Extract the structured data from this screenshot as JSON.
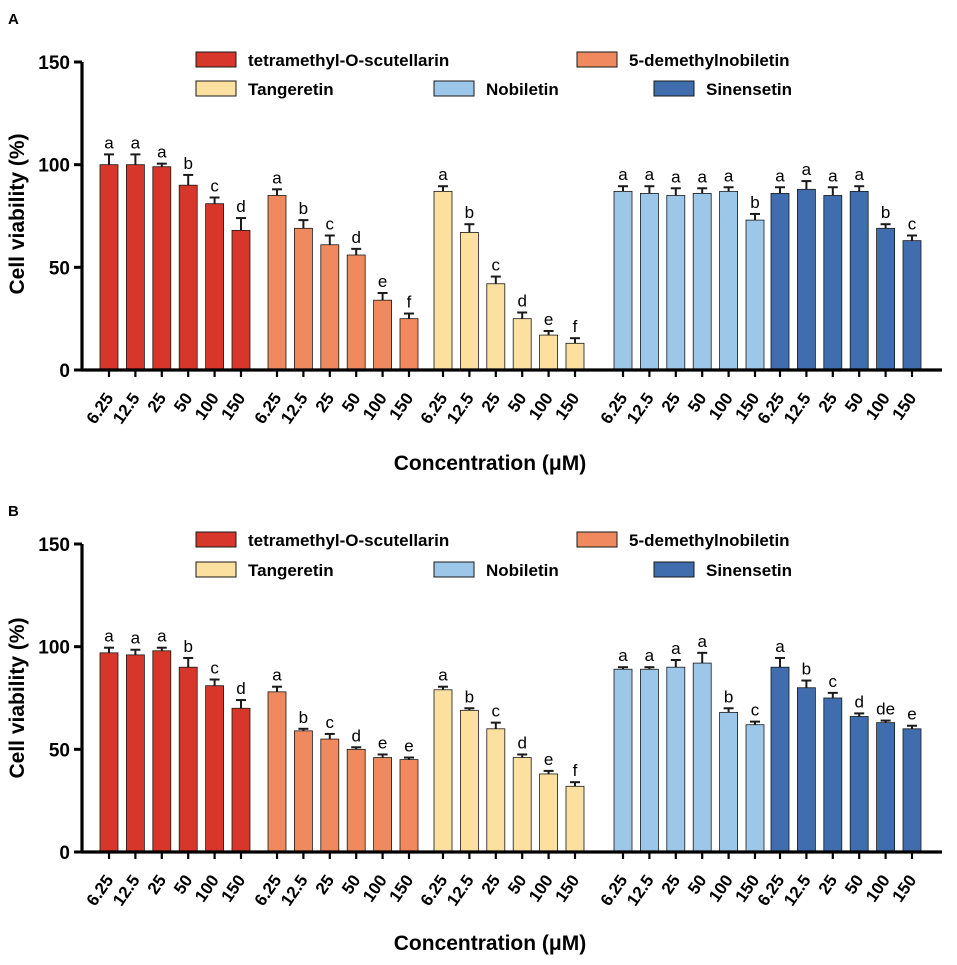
{
  "figure": {
    "panels": [
      {
        "panel_label": "A",
        "axis_title": "Concentration (μM)"
      },
      {
        "panel_label": "B",
        "axis_title": "Concentration (μM)"
      }
    ]
  },
  "chart_data": [
    {
      "type": "bar",
      "panel": "A",
      "title": "",
      "xlabel": "Concentration (μM)",
      "ylabel": "Cell viability (%)",
      "ylim": [
        0,
        150
      ],
      "yticks": [
        "0",
        "50",
        "100",
        "150"
      ],
      "categories": [
        "6.25",
        "12.5",
        "25",
        "50",
        "100",
        "150"
      ],
      "legend": [
        "tetramethyl-O-scutellarin",
        "5-demethylnobiletin",
        "Tangeretin",
        "Nobiletin",
        "Sinensetin"
      ],
      "series": [
        {
          "name": "tetramethyl-O-scutellarin",
          "color": "#D6372A",
          "values": [
            100,
            100,
            99,
            90,
            81,
            68
          ],
          "errors": [
            5,
            5,
            1.5,
            5,
            3,
            6
          ],
          "labels": [
            "a",
            "a",
            "a",
            "b",
            "c",
            "d"
          ]
        },
        {
          "name": "5-demethylnobiletin",
          "color": "#F08A5E",
          "values": [
            85,
            69,
            61,
            56,
            34,
            25
          ],
          "errors": [
            3,
            4,
            4.5,
            3,
            3.5,
            2.5
          ],
          "labels": [
            "a",
            "b",
            "c",
            "d",
            "e",
            "f"
          ]
        },
        {
          "name": "Tangeretin",
          "color": "#FBE0A0",
          "values": [
            87,
            67,
            42,
            25,
            17,
            13
          ],
          "errors": [
            2.5,
            4,
            3.5,
            3,
            2,
            2.5
          ],
          "labels": [
            "a",
            "b",
            "c",
            "d",
            "e",
            "f"
          ]
        },
        {
          "name": "Nobiletin",
          "color": "#9CC7E8",
          "values": [
            87,
            86,
            85,
            86,
            87,
            73
          ],
          "errors": [
            2.5,
            3.5,
            3.5,
            2.5,
            2,
            3
          ],
          "labels": [
            "a",
            "a",
            "a",
            "a",
            "a",
            "b"
          ]
        },
        {
          "name": "Sinensetin",
          "color": "#3F6DAE",
          "values": [
            86,
            88,
            85,
            87,
            69,
            63
          ],
          "errors": [
            3,
            4,
            4,
            2.5,
            2,
            2.5
          ],
          "labels": [
            "a",
            "a",
            "a",
            "a",
            "b",
            "c"
          ]
        }
      ]
    },
    {
      "type": "bar",
      "panel": "B",
      "title": "",
      "xlabel": "Concentration (μM)",
      "ylabel": "Cell viability (%)",
      "ylim": [
        0,
        150
      ],
      "yticks": [
        "0",
        "50",
        "100",
        "150"
      ],
      "categories": [
        "6.25",
        "12.5",
        "25",
        "50",
        "100",
        "150"
      ],
      "legend": [
        "tetramethyl-O-scutellarin",
        "5-demethylnobiletin",
        "Tangeretin",
        "Nobiletin",
        "Sinensetin"
      ],
      "series": [
        {
          "name": "tetramethyl-O-scutellarin",
          "color": "#D6372A",
          "values": [
            97,
            96,
            98,
            90,
            81,
            70
          ],
          "errors": [
            2.5,
            2.5,
            1.5,
            4.5,
            3,
            4
          ],
          "labels": [
            "a",
            "a",
            "a",
            "b",
            "c",
            "d"
          ]
        },
        {
          "name": "5-demethylnobiletin",
          "color": "#F08A5E",
          "values": [
            78,
            59,
            55,
            50,
            46,
            45
          ],
          "errors": [
            2.5,
            1,
            2.5,
            1,
            1.5,
            1
          ],
          "labels": [
            "a",
            "b",
            "c",
            "d",
            "e",
            "e"
          ]
        },
        {
          "name": "Tangeretin",
          "color": "#FBE0A0",
          "values": [
            79,
            69,
            60,
            46,
            38,
            32
          ],
          "errors": [
            1.5,
            1,
            3,
            1.5,
            1.5,
            2
          ],
          "labels": [
            "a",
            "b",
            "c",
            "d",
            "e",
            "f"
          ]
        },
        {
          "name": "Nobiletin",
          "color": "#9CC7E8",
          "values": [
            89,
            89,
            90,
            92,
            68,
            62
          ],
          "errors": [
            1,
            1,
            3.5,
            5,
            2,
            1.5
          ],
          "labels": [
            "a",
            "a",
            "a",
            "a",
            "b",
            "c"
          ]
        },
        {
          "name": "Sinensetin",
          "color": "#3F6DAE",
          "values": [
            90,
            80,
            75,
            66,
            63,
            60
          ],
          "errors": [
            4.5,
            3.5,
            2.5,
            1.5,
            1,
            1.5
          ],
          "labels": [
            "a",
            "b",
            "c",
            "d",
            "de",
            "e"
          ]
        }
      ]
    }
  ]
}
